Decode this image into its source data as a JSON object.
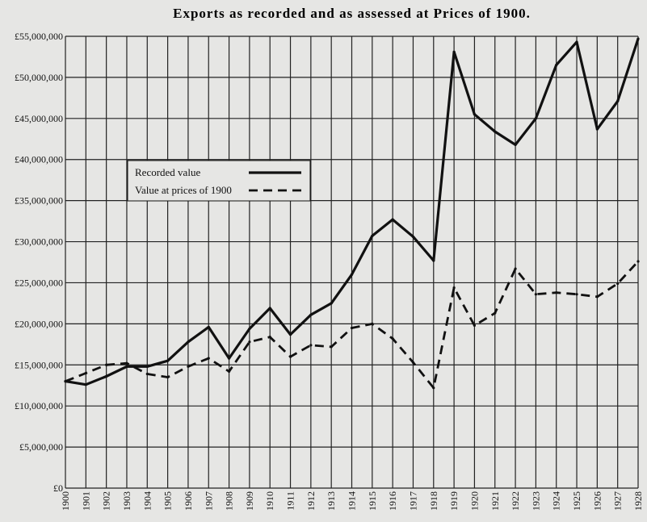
{
  "chart_data": {
    "type": "line",
    "title": "Exports as recorded and as assessed at Prices of 1900.",
    "categories": [
      "1900",
      "1901",
      "1902",
      "1903",
      "1904",
      "1905",
      "1906",
      "1907",
      "1908",
      "1909",
      "1910",
      "1911",
      "1912",
      "1913",
      "1914",
      "1915",
      "1916",
      "1917",
      "1918",
      "1919",
      "1920",
      "1921",
      "1922",
      "1923",
      "1924",
      "1925",
      "1926",
      "1927",
      "1928"
    ],
    "ylim": [
      0,
      55000000
    ],
    "yticks": [
      {
        "value": 0,
        "label": "£0"
      },
      {
        "value": 5000000,
        "label": "£5,000,000"
      },
      {
        "value": 10000000,
        "label": "£10,000,000"
      },
      {
        "value": 15000000,
        "label": "£15,000,000"
      },
      {
        "value": 20000000,
        "label": "£20,000,000"
      },
      {
        "value": 25000000,
        "label": "£25,000,000"
      },
      {
        "value": 30000000,
        "label": "£30,000,000"
      },
      {
        "value": 35000000,
        "label": "£35,000,000"
      },
      {
        "value": 40000000,
        "label": "£40,000,000"
      },
      {
        "value": 45000000,
        "label": "£45,000,000"
      },
      {
        "value": 50000000,
        "label": "£50,000,000"
      },
      {
        "value": 55000000,
        "label": "£55,000,000"
      }
    ],
    "grid": true,
    "legend_position": "center-left",
    "series": [
      {
        "name": "Recorded value",
        "style": "solid",
        "values": [
          13000000,
          12600000,
          13600000,
          14800000,
          14800000,
          15500000,
          17800000,
          19600000,
          15800000,
          19400000,
          21900000,
          18700000,
          21100000,
          22500000,
          26000000,
          30700000,
          32700000,
          30600000,
          27700000,
          53100000,
          45500000,
          43400000,
          41800000,
          45000000,
          51500000,
          54300000,
          43700000,
          47100000,
          54700000
        ]
      },
      {
        "name": "Value at prices of 1900",
        "style": "dashed",
        "values": [
          13000000,
          14000000,
          15000000,
          15200000,
          13900000,
          13500000,
          14800000,
          15800000,
          14200000,
          17800000,
          18400000,
          16000000,
          17400000,
          17200000,
          19500000,
          20000000,
          18200000,
          15300000,
          12200000,
          24400000,
          19800000,
          21300000,
          26700000,
          23600000,
          23800000,
          23600000,
          23300000,
          24900000,
          27600000
        ]
      }
    ],
    "colors": {
      "background": "#e6e6e4",
      "ink": "#111111",
      "grid": "#222222"
    }
  }
}
